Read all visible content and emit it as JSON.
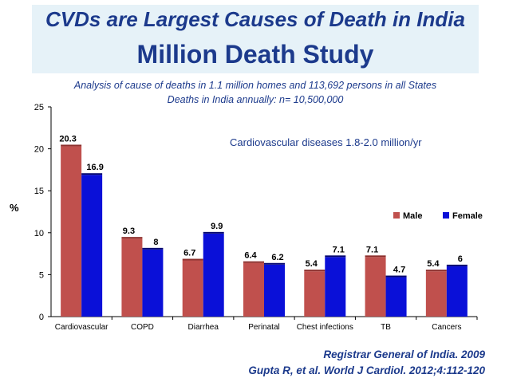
{
  "header": {
    "title_line1": "CVDs are Largest Causes of Death in India",
    "title_line2": "Million Death Study",
    "subtitle_line1": "Analysis of cause of deaths in 1.1 million homes and 113,692 persons in all States",
    "subtitle_line2": "Deaths in India annually: n= 10,500,000"
  },
  "annotation": "Cardiovascular diseases 1.8-2.0 million/yr",
  "source": {
    "line1": "Registrar General of India. 2009",
    "line2": "Gupta R, et al. World J Cardiol. 2012;4:112-120"
  },
  "colors": {
    "male": "#c0504d",
    "female": "#0a10d8",
    "title": "#1c3a8c",
    "title_bg": "#e6f2f8"
  },
  "chart_data": {
    "type": "bar",
    "categories": [
      "Cardiovascular",
      "COPD",
      "Diarrhea",
      "Perinatal",
      "Chest infections",
      "TB",
      "Cancers"
    ],
    "series": [
      {
        "name": "Male",
        "values": [
          20.3,
          9.3,
          6.7,
          6.4,
          5.4,
          7.1,
          5.4
        ]
      },
      {
        "name": "Female",
        "values": [
          16.9,
          8,
          9.9,
          6.2,
          7.1,
          4.7,
          6
        ]
      }
    ],
    "ylabel": "%",
    "ylim": [
      0,
      25
    ],
    "yticks": [
      0,
      5,
      10,
      15,
      20,
      25
    ],
    "grid": false,
    "legend": "right"
  }
}
